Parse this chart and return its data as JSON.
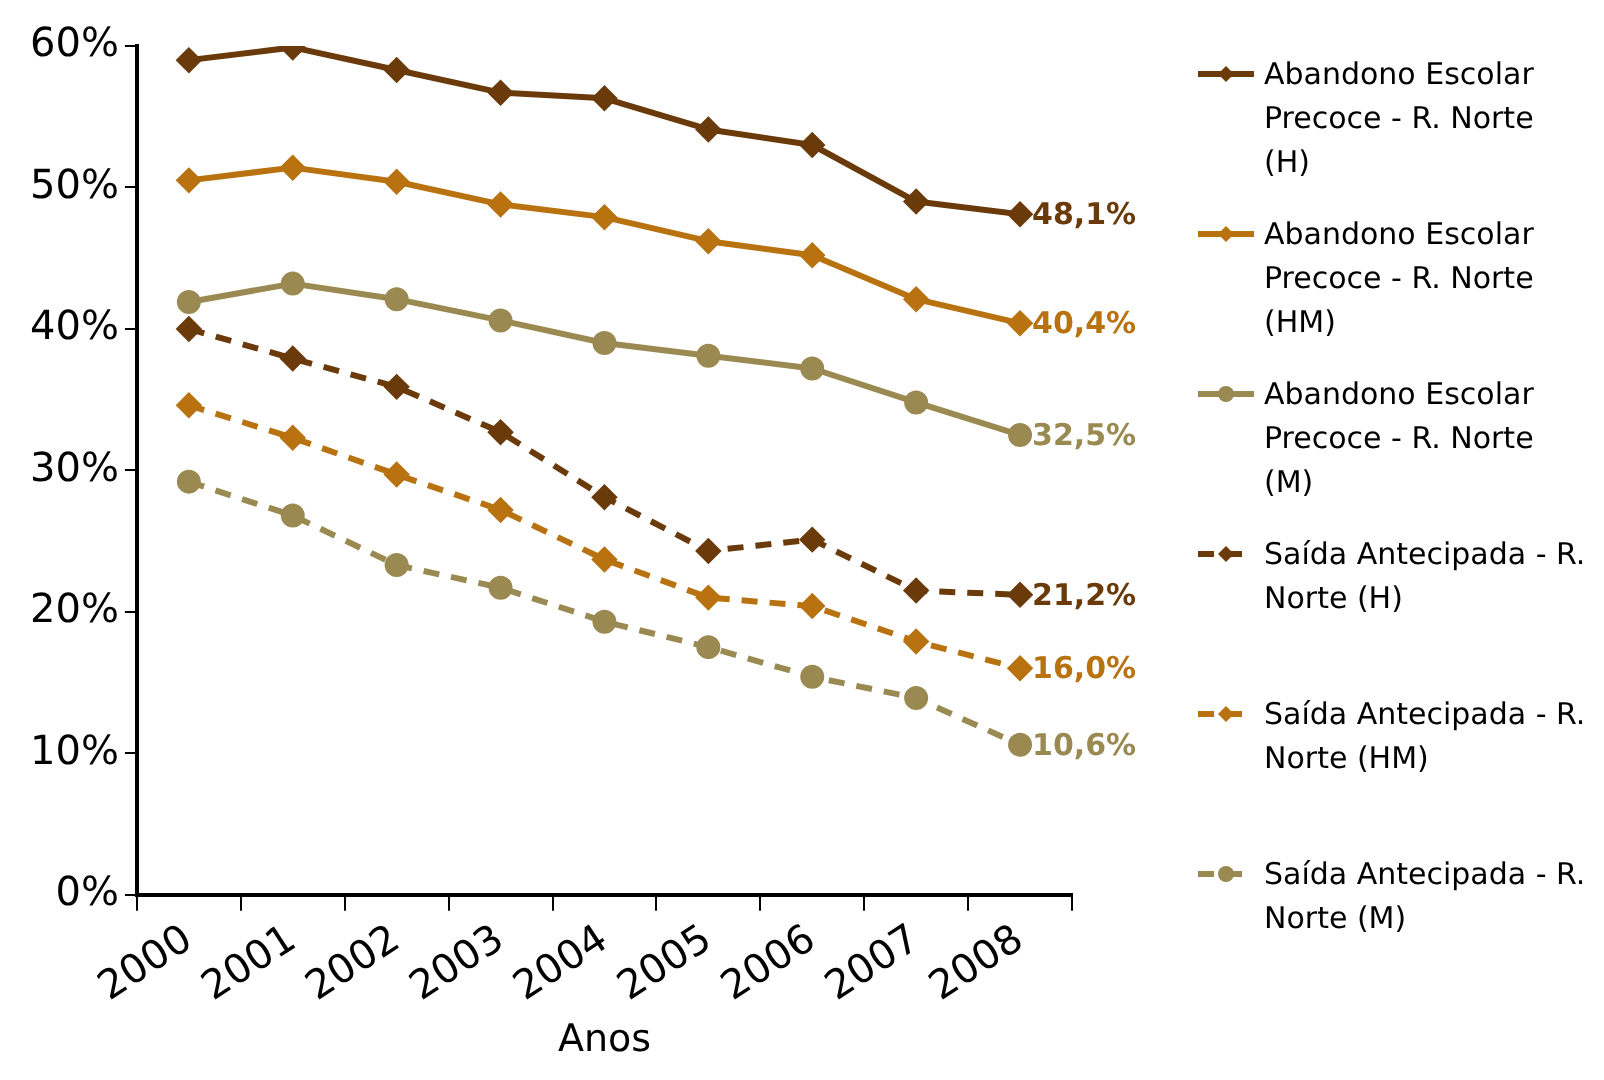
{
  "chart_data": {
    "type": "line",
    "xlabel": "Anos",
    "categories": [
      "2000",
      "2001",
      "2002",
      "2003",
      "2004",
      "2005",
      "2006",
      "2007",
      "2008"
    ],
    "ylim": [
      0,
      60
    ],
    "yticks": [
      {
        "value": 0,
        "label": "0%"
      },
      {
        "value": 10,
        "label": "10%"
      },
      {
        "value": 20,
        "label": "20%"
      },
      {
        "value": 30,
        "label": "30%"
      },
      {
        "value": 40,
        "label": "40%"
      },
      {
        "value": 50,
        "label": "50%"
      },
      {
        "value": 60,
        "label": "60%"
      }
    ],
    "grid": false,
    "legend": "right",
    "series": [
      {
        "name": "Abandono Escolar Precoce - R. Norte (H)",
        "color": "#6b3a0a",
        "marker": "diamond",
        "line_style": "solid",
        "values": [
          59.0,
          59.9,
          58.3,
          56.7,
          56.3,
          54.1,
          53.0,
          49.0,
          48.1
        ],
        "value_labels": [
          null,
          null,
          null,
          null,
          null,
          null,
          null,
          null,
          "48,1%"
        ]
      },
      {
        "name": "Abandono Escolar Precoce - R. Norte (HM)",
        "color": "#b8720f",
        "marker": "diamond",
        "line_style": "solid",
        "values": [
          50.5,
          51.4,
          50.4,
          48.8,
          47.9,
          46.2,
          45.2,
          42.1,
          40.4
        ],
        "value_labels": [
          null,
          null,
          null,
          null,
          null,
          null,
          null,
          null,
          "40,4%"
        ]
      },
      {
        "name": "Abandono Escolar Precoce - R. Norte (M)",
        "color": "#9a8a52",
        "marker": "circle",
        "line_style": "solid",
        "values": [
          41.9,
          43.2,
          42.1,
          40.6,
          39.0,
          38.1,
          37.2,
          34.8,
          32.5
        ],
        "value_labels": [
          null,
          null,
          null,
          null,
          null,
          null,
          null,
          null,
          "32,5%"
        ]
      },
      {
        "name": "Saída Antecipada - R. Norte (H)",
        "color": "#6b3a0a",
        "marker": "diamond",
        "line_style": "dashed",
        "values": [
          40.0,
          37.9,
          35.9,
          32.7,
          28.1,
          24.3,
          25.1,
          21.5,
          21.2
        ],
        "value_labels": [
          null,
          null,
          null,
          null,
          null,
          null,
          null,
          null,
          "21,2%"
        ]
      },
      {
        "name": "Saída Antecipada - R. Norte (HM)",
        "color": "#b8720f",
        "marker": "diamond",
        "line_style": "dashed",
        "values": [
          34.6,
          32.3,
          29.7,
          27.2,
          23.7,
          21.0,
          20.4,
          17.9,
          16.0
        ],
        "value_labels": [
          null,
          null,
          null,
          null,
          null,
          null,
          null,
          null,
          "16,0%"
        ]
      },
      {
        "name": "Saída Antecipada - R. Norte (M)",
        "color": "#9a8a52",
        "marker": "circle",
        "line_style": "dashed",
        "values": [
          29.2,
          26.8,
          23.3,
          21.7,
          19.3,
          17.5,
          15.4,
          13.9,
          10.6
        ],
        "value_labels": [
          null,
          null,
          null,
          null,
          null,
          null,
          null,
          null,
          "10,6%"
        ]
      }
    ]
  }
}
